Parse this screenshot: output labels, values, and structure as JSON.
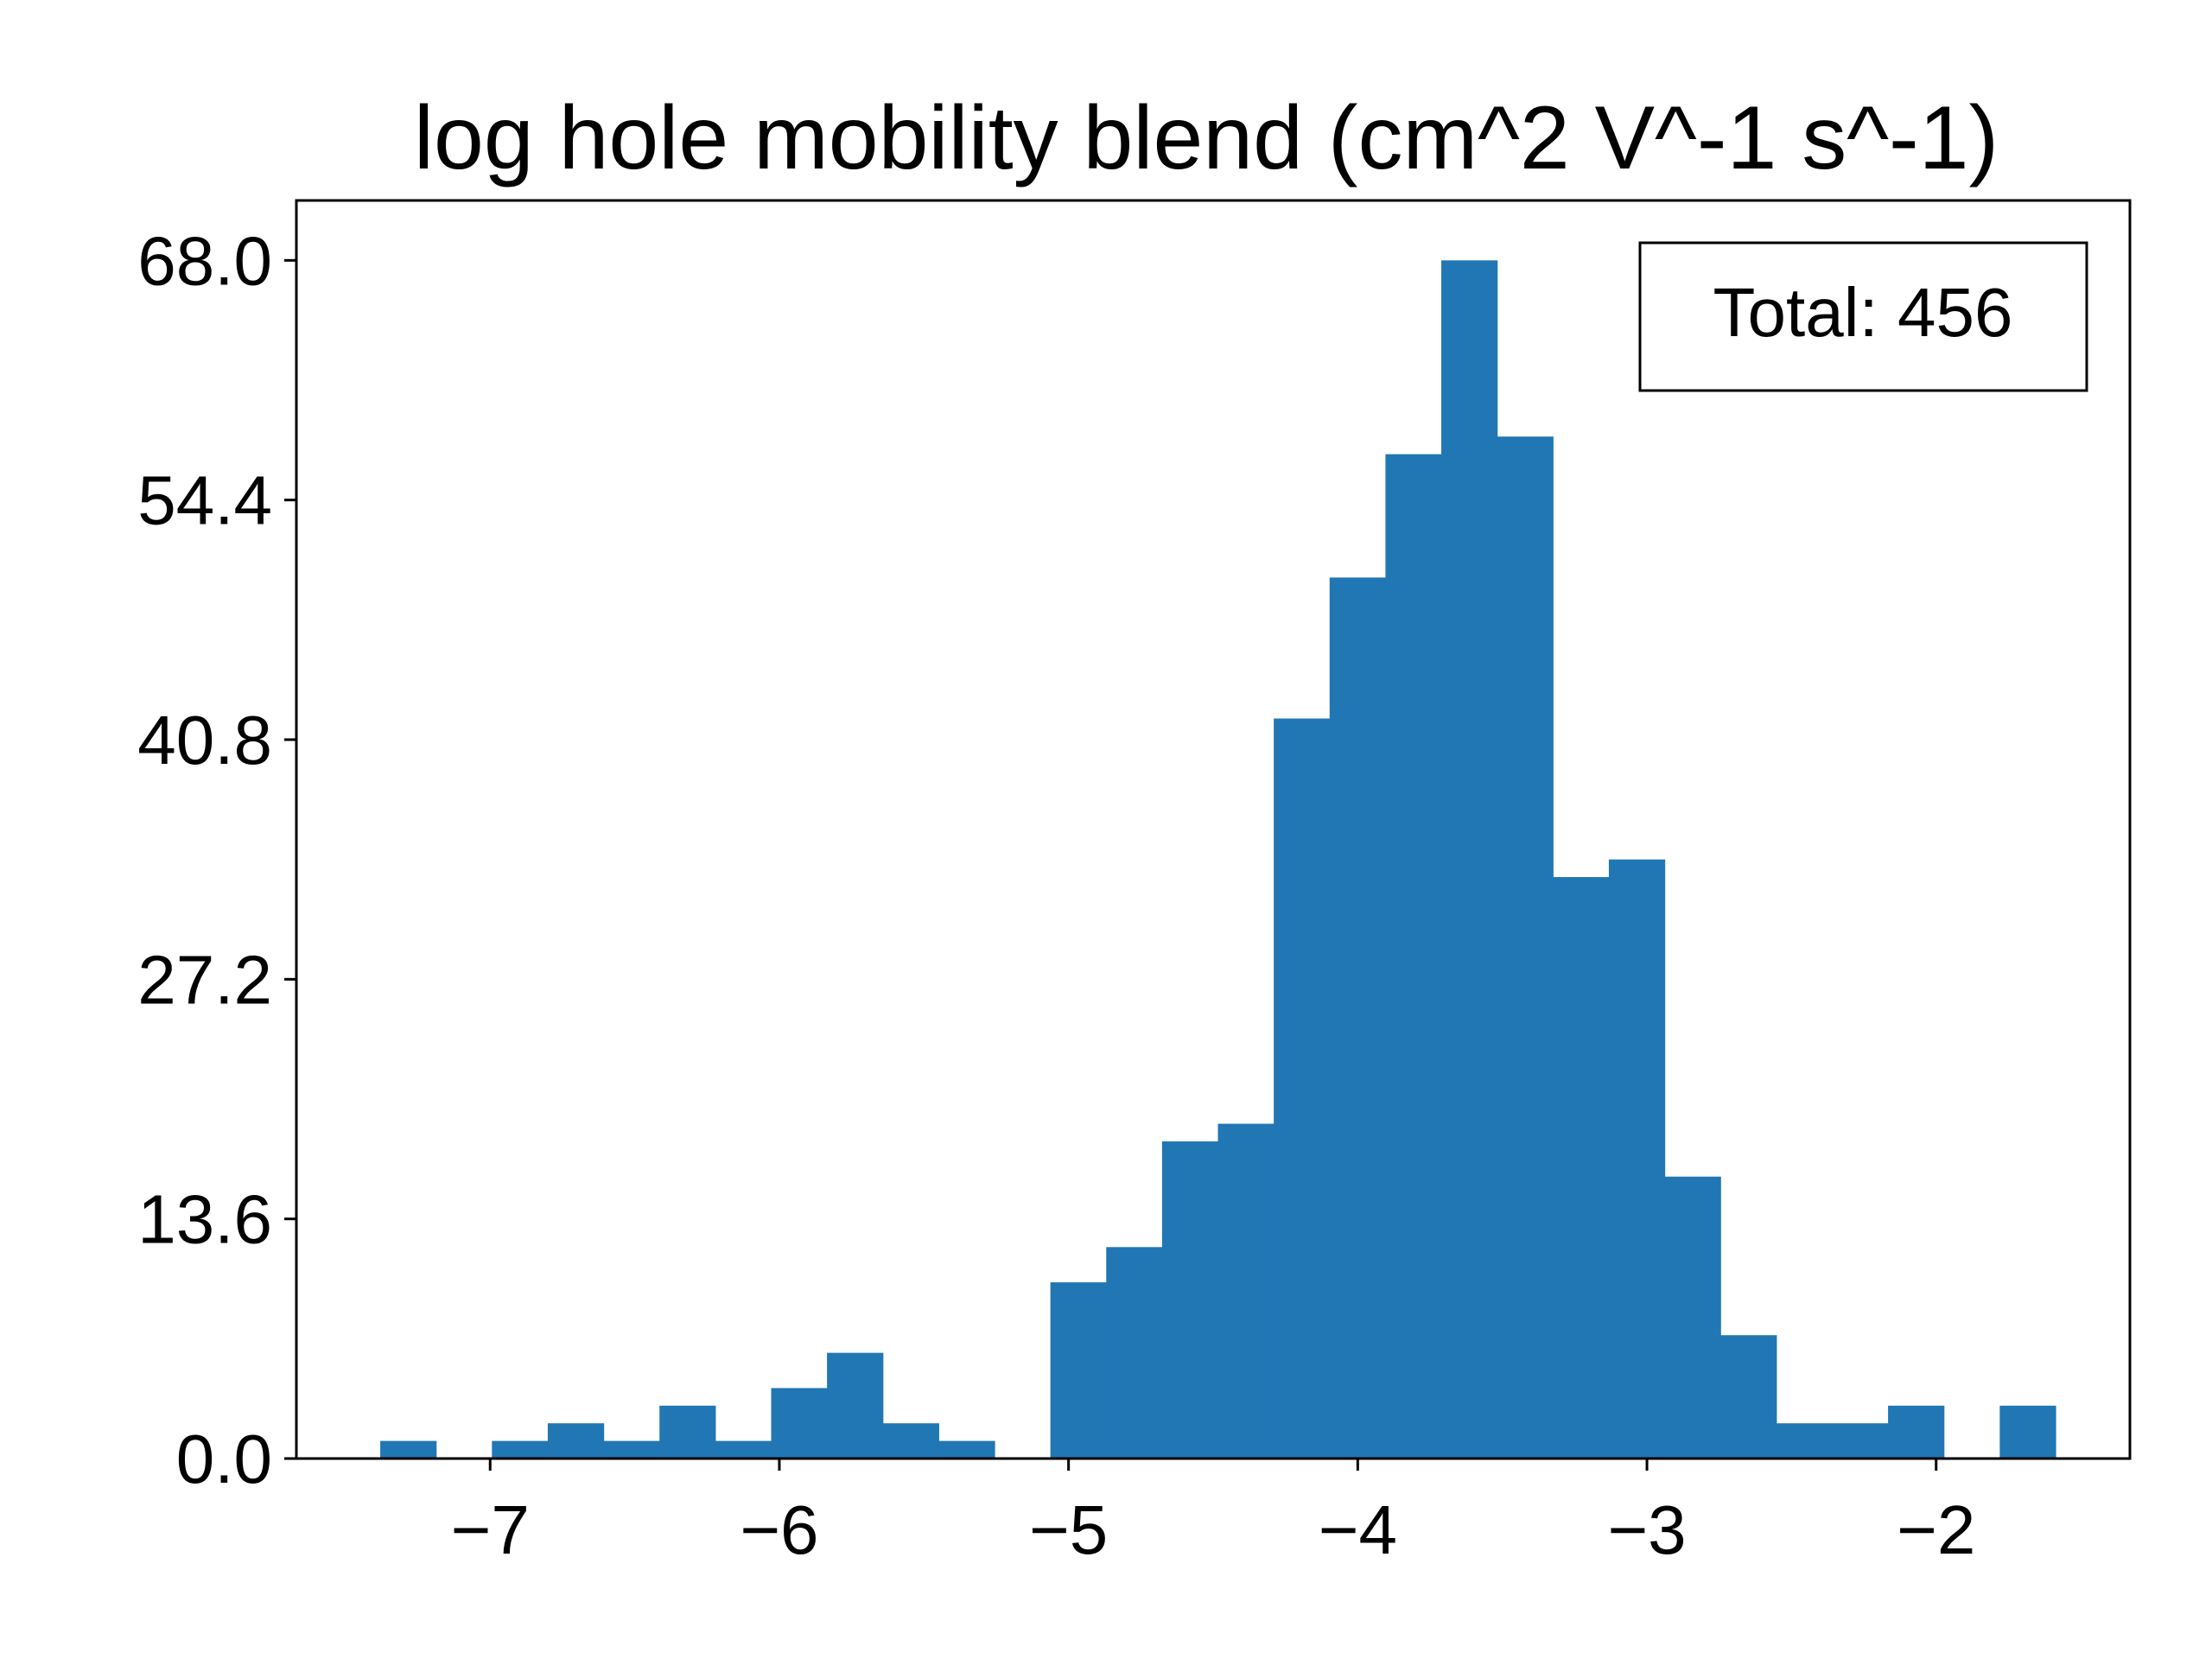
{
  "chart_data": {
    "type": "bar",
    "title": "log hole mobility blend (cm^2 V^-1 s^-1)",
    "xlabel": "",
    "ylabel": "",
    "annotation": "Total: 456",
    "annotation_position": "top-right",
    "grid": false,
    "bar_color": "#2077b4",
    "xlim": [
      -7.67,
      -1.33
    ],
    "ylim": [
      0,
      71.4
    ],
    "x_ticks": [
      -7,
      -6,
      -5,
      -4,
      -3,
      -2
    ],
    "x_tick_labels": [
      "−7",
      "−6",
      "−5",
      "−4",
      "−3",
      "−2"
    ],
    "y_ticks": [
      0.0,
      13.6,
      27.2,
      40.8,
      54.4,
      68.0
    ],
    "y_tick_labels": [
      "0.0",
      "13.6",
      "27.2",
      "40.8",
      "54.4",
      "68.0"
    ],
    "bin_start": -7.38,
    "bin_width": 0.1931,
    "counts": [
      1,
      0,
      1,
      2,
      1,
      3,
      1,
      4,
      6,
      2,
      1,
      0,
      10,
      12,
      18,
      19,
      42,
      50,
      57,
      68,
      58,
      33,
      34,
      16,
      7,
      2,
      2,
      3,
      0,
      3
    ]
  }
}
